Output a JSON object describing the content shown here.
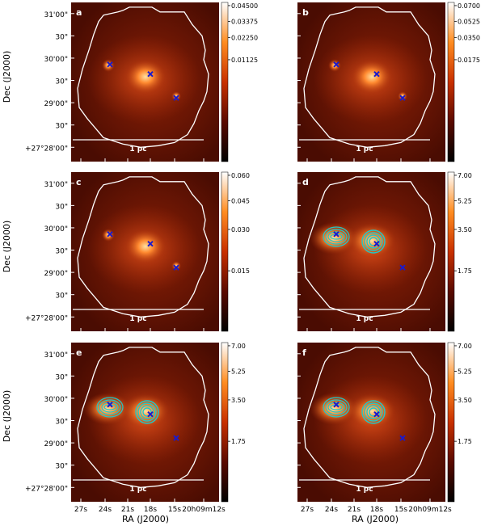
{
  "figure": {
    "ylabel": "Dec (J2000)",
    "xlabel": "RA (J2000)",
    "dec_ticks": [
      "31'00\"",
      "30\"",
      "30'00\"",
      "30\"",
      "29'00\"",
      "30\"",
      "+27°28'00\""
    ],
    "ra_ticks": [
      "27s",
      "24s",
      "21s",
      "18s",
      "15s",
      "20h09m12s"
    ],
    "scale_bar_label": "1 pc"
  },
  "panels": [
    {
      "letter": "a",
      "colorbar_ticks": [
        "0.04500",
        "0.03375",
        "0.02250",
        "0.01125"
      ],
      "contours": false
    },
    {
      "letter": "b",
      "colorbar_ticks": [
        "0.0700",
        "0.0525",
        "0.0350",
        "0.0175"
      ],
      "contours": false
    },
    {
      "letter": "c",
      "colorbar_ticks": [
        "0.060",
        "0.045",
        "0.030",
        "0.015"
      ],
      "contours": false
    },
    {
      "letter": "d",
      "colorbar_ticks": [
        "7.00",
        "5.25",
        "3.50",
        "1.75"
      ],
      "contours": true
    },
    {
      "letter": "e",
      "colorbar_ticks": [
        "7.00",
        "5.25",
        "3.50",
        "1.75"
      ],
      "contours": true
    },
    {
      "letter": "f",
      "colorbar_ticks": [
        "7.00",
        "5.25",
        "3.50",
        "1.75"
      ],
      "contours": true
    }
  ],
  "colors": {
    "background_dark": "#3a0802",
    "heat_mid": "#a02a08",
    "heat_bright": "#ff9a40",
    "outline": "#ffffff",
    "marker": "#1a1acc",
    "contour": "#20c8c8"
  }
}
